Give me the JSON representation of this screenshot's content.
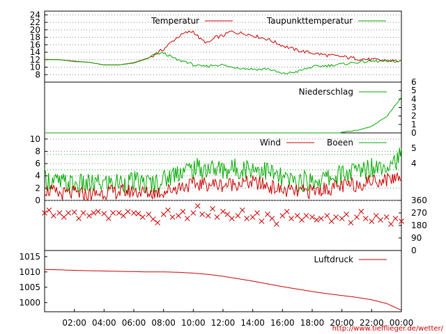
{
  "colors": {
    "temperature": "#cc0000",
    "dewpoint": "#00aa00",
    "frame": "#000000",
    "grid": "#808080",
    "credit": "#cc0000"
  },
  "credit": "http://www.tiefflieger.de/wetter/",
  "chart_data": [
    {
      "type": "line",
      "panel": "temperature",
      "xlabel": "",
      "ylabel": "",
      "ylim": [
        6,
        25
      ],
      "yticks": [
        "8",
        "10",
        "12",
        "14",
        "16",
        "18",
        "20",
        "22",
        "24"
      ],
      "grid": true,
      "legend": "top",
      "x": [
        0,
        1,
        2,
        3,
        4,
        5,
        6,
        7,
        7.5,
        8,
        8.5,
        9,
        9.5,
        10,
        10.5,
        11,
        11.5,
        12,
        12.5,
        13,
        13.5,
        14,
        14.5,
        15,
        16,
        17,
        18,
        19,
        20,
        21,
        22,
        23,
        24
      ],
      "series": [
        {
          "name": "Temperatur",
          "values": [
            12.1,
            12.0,
            11.6,
            11.3,
            10.6,
            10.6,
            11.2,
            12.5,
            13.6,
            14.8,
            16.6,
            18.2,
            19.2,
            19.6,
            17.4,
            16.4,
            18.0,
            18.4,
            19.5,
            19.2,
            19.0,
            18.5,
            18.0,
            17.5,
            15.8,
            14.5,
            13.8,
            13.2,
            12.8,
            12.3,
            12.0,
            11.8,
            11.6
          ]
        },
        {
          "name": "Taupunkttemperatur",
          "values": [
            12.0,
            12.0,
            11.5,
            11.3,
            10.6,
            10.6,
            11.1,
            12.4,
            13.6,
            13.8,
            12.8,
            11.8,
            11.5,
            10.6,
            10.2,
            10.3,
            10.6,
            10.6,
            10.0,
            9.9,
            9.6,
            9.5,
            9.4,
            9.6,
            8.2,
            8.8,
            10.1,
            10.4,
            10.8,
            11.3,
            11.6,
            11.5,
            11.6
          ]
        }
      ]
    },
    {
      "type": "area",
      "panel": "precipitation",
      "ylim": [
        0,
        6
      ],
      "yticks": [
        "0",
        "1",
        "2",
        "3",
        "4",
        "5",
        "6"
      ],
      "legend": "top-right",
      "x": [
        0,
        19,
        19.8,
        20,
        21,
        21.5,
        22,
        23,
        24
      ],
      "series": [
        {
          "name": "Niederschlag",
          "values": [
            0,
            0,
            0,
            0.1,
            0.3,
            0.5,
            0.8,
            1.9,
            4.2
          ]
        }
      ]
    },
    {
      "type": "line",
      "panel": "wind",
      "ylim": [
        0,
        11
      ],
      "yticks": [
        "0",
        "2",
        "4",
        "6",
        "8",
        "10"
      ],
      "right_labels": [
        "5",
        "4"
      ],
      "grid": true,
      "legend": "top",
      "x": [
        0,
        1,
        2,
        3,
        4,
        5,
        6,
        7,
        8,
        9,
        10,
        11,
        12,
        13,
        14,
        15,
        16,
        17,
        18,
        19,
        20,
        21,
        22,
        23,
        24
      ],
      "series": [
        {
          "name": "Wind",
          "values": [
            1.8,
            1.0,
            1.2,
            0.9,
            1.3,
            1.4,
            1.5,
            1.2,
            1.4,
            2.2,
            2.6,
            2.7,
            2.5,
            2.8,
            2.9,
            2.4,
            1.6,
            1.4,
            1.5,
            1.9,
            2.3,
            2.6,
            3.2,
            3.4,
            4.0
          ]
        },
        {
          "name": "Boeen",
          "values": [
            3.5,
            2.8,
            2.6,
            2.5,
            2.8,
            2.9,
            3.0,
            2.7,
            3.3,
            4.8,
            5.1,
            5.2,
            5.0,
            5.2,
            5.3,
            4.8,
            3.4,
            3.0,
            3.2,
            3.6,
            4.2,
            4.8,
            5.5,
            6.0,
            7.0
          ]
        }
      ]
    },
    {
      "type": "scatter",
      "panel": "wind_direction",
      "ylim": [
        0,
        360
      ],
      "yticks": [
        "0",
        "90",
        "180",
        "270",
        "360"
      ],
      "marker": "x",
      "x": [
        0,
        0.3,
        0.6,
        1,
        1.3,
        1.6,
        2,
        2.3,
        2.6,
        3,
        3.3,
        3.6,
        4,
        4.3,
        4.6,
        5,
        5.3,
        5.6,
        6,
        6.3,
        6.6,
        7,
        7.3,
        7.6,
        8,
        8.3,
        8.6,
        9,
        9.3,
        9.6,
        10,
        10.3,
        10.6,
        11,
        11.3,
        11.6,
        12,
        12.3,
        12.6,
        13,
        13.3,
        13.6,
        14,
        14.3,
        14.6,
        15,
        15.3,
        15.6,
        16,
        16.3,
        16.6,
        17,
        17.3,
        17.6,
        18,
        18.3,
        18.6,
        19,
        19.3,
        19.6,
        20,
        20.3,
        20.6,
        21,
        21.3,
        21.6,
        22,
        22.3,
        22.6,
        23,
        23.3,
        23.6,
        24
      ],
      "values": [
        270,
        290,
        250,
        270,
        240,
        270,
        275,
        230,
        270,
        250,
        270,
        280,
        265,
        230,
        270,
        270,
        250,
        280,
        270,
        265,
        240,
        260,
        225,
        200,
        260,
        290,
        240,
        250,
        280,
        230,
        270,
        320,
        260,
        250,
        300,
        240,
        280,
        260,
        230,
        250,
        290,
        230,
        240,
        270,
        210,
        260,
        230,
        190,
        250,
        280,
        230,
        250,
        220,
        250,
        240,
        220,
        230,
        250,
        210,
        240,
        230,
        260,
        200,
        240,
        280,
        230,
        210,
        250,
        220,
        240,
        190,
        230,
        210
      ]
    },
    {
      "type": "line",
      "panel": "pressure",
      "ylim": [
        997,
        1017
      ],
      "yticks": [
        "1000",
        "1005",
        "1010",
        "1015"
      ],
      "legend": "top-right",
      "x": [
        0,
        1,
        2,
        3,
        4,
        5,
        6,
        7,
        8,
        9,
        10,
        11,
        12,
        13,
        14,
        15,
        16,
        17,
        18,
        19,
        20,
        21,
        22,
        23,
        24
      ],
      "series": [
        {
          "name": "Luftdruck",
          "values": [
            1010.8,
            1010.7,
            1010.5,
            1010.4,
            1010.3,
            1010.2,
            1010.1,
            1010.0,
            1010.0,
            1009.9,
            1009.6,
            1009.2,
            1008.6,
            1007.8,
            1007.0,
            1006.1,
            1005.2,
            1004.4,
            1003.6,
            1002.9,
            1002.3,
            1001.7,
            1000.9,
            999.7,
            997.5
          ]
        }
      ]
    }
  ],
  "xaxis": {
    "ticks": [
      2,
      4,
      6,
      8,
      10,
      12,
      14,
      16,
      18,
      20,
      22,
      24
    ],
    "labels": [
      "02:00",
      "04:00",
      "06:00",
      "08:00",
      "10:00",
      "12:00",
      "14:00",
      "16:00",
      "18:00",
      "20:00",
      "22:00",
      "00:00"
    ]
  }
}
